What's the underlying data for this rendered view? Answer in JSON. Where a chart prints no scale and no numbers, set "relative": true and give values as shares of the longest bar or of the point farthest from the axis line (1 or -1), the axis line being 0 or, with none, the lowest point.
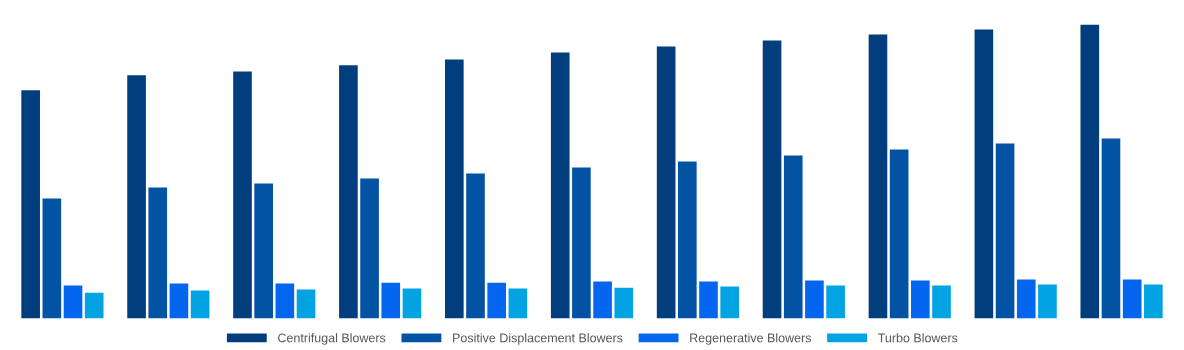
{
  "chart_data": {
    "type": "bar",
    "relative": true,
    "legend": "bottom",
    "grid": false,
    "categories": [
      null,
      null,
      null,
      null,
      null,
      null,
      null,
      null,
      null,
      null,
      null
    ],
    "series": [
      {
        "name": "Centrifugal Blowers",
        "color": "#023e7d",
        "values": [
          0.776,
          0.827,
          0.84,
          0.861,
          0.881,
          0.905,
          0.925,
          0.946,
          0.966,
          0.983,
          1
        ]
      },
      {
        "name": "Positive Displacement Blowers",
        "color": "#0353a4",
        "values": [
          0.408,
          0.446,
          0.459,
          0.476,
          0.493,
          0.514,
          0.534,
          0.554,
          0.575,
          0.595,
          0.612
        ]
      },
      {
        "name": "Regenerative Blowers",
        "color": "#0466ee",
        "values": [
          0.112,
          0.119,
          0.119,
          0.122,
          0.122,
          0.126,
          0.126,
          0.129,
          0.129,
          0.133,
          0.133
        ]
      },
      {
        "name": "Turbo Blowers",
        "color": "#02a3e3",
        "values": [
          0.088,
          0.095,
          0.099,
          0.102,
          0.102,
          0.105,
          0.109,
          0.112,
          0.112,
          0.116,
          0.116
        ]
      }
    ]
  }
}
